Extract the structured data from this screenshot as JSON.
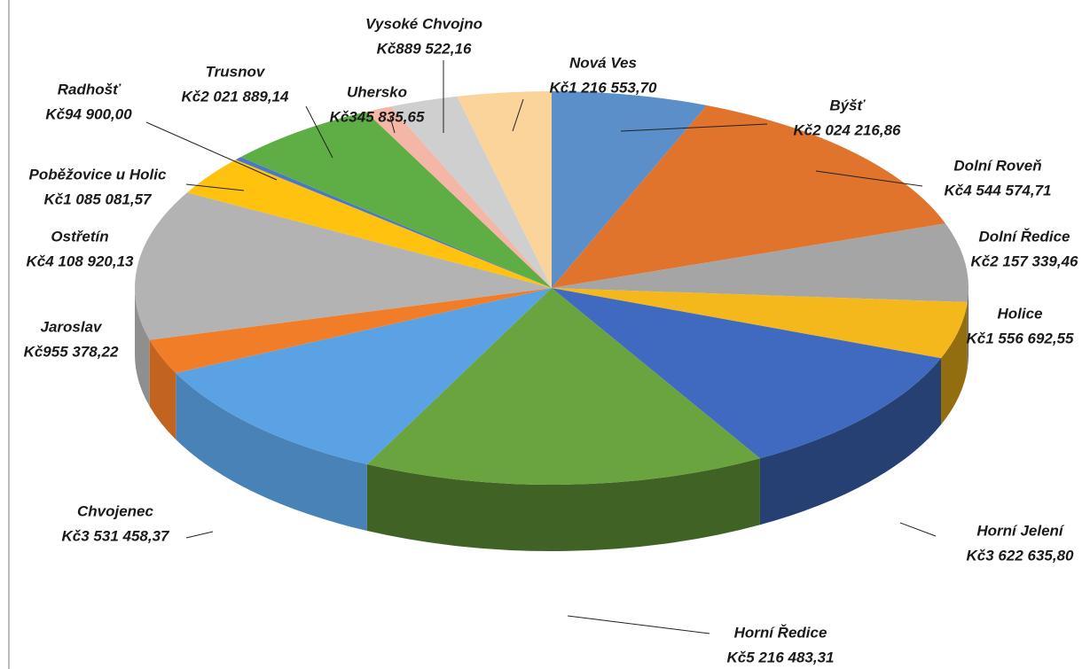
{
  "chart_data": {
    "type": "pie",
    "categories": [
      "Býšť",
      "Dolní Roveň",
      "Dolní Ředice",
      "Holice",
      "Horní Jelení",
      "Horní Ředice",
      "Chvojenec",
      "Jaroslav",
      "Ostřetín",
      "Poběžovice u Holic",
      "Radhošť",
      "Trusnov",
      "Uhersko",
      "Vysoké Chvojno",
      "Nová Ves"
    ],
    "values": [
      2024216.86,
      4544574.71,
      2157339.46,
      1556692.55,
      3622635.8,
      5216483.31,
      3531458.37,
      955378.22,
      4108920.13,
      1085081.57,
      94900.0,
      2021889.14,
      345835.65,
      889522.16,
      1216553.7
    ],
    "value_labels": [
      "Kč2 024 216,86",
      "Kč4 544 574,71",
      "Kč2 157 339,46",
      "Kč1 556 692,55",
      "Kč3 622 635,80",
      "Kč5 216 483,31",
      "Kč3 531 458,37",
      "Kč955 378,22",
      "Kč4 108 920,13",
      "Kč1 085 081,57",
      "Kč94 900,00",
      "Kč2 021 889,14",
      "Kč345 835,65",
      "Kč889 522,16",
      "Kč1 216 553,70"
    ],
    "colors": [
      "#5b8fc9",
      "#e0742c",
      "#a5a5a5",
      "#f5b81c",
      "#3f6ac0",
      "#6aa43e",
      "#5aa2e3",
      "#f27d28",
      "#b3b3b3",
      "#ffc20e",
      "#4a78c8",
      "#5fae45",
      "#f4b6a6",
      "#cfcfcf",
      "#fad49a"
    ]
  }
}
